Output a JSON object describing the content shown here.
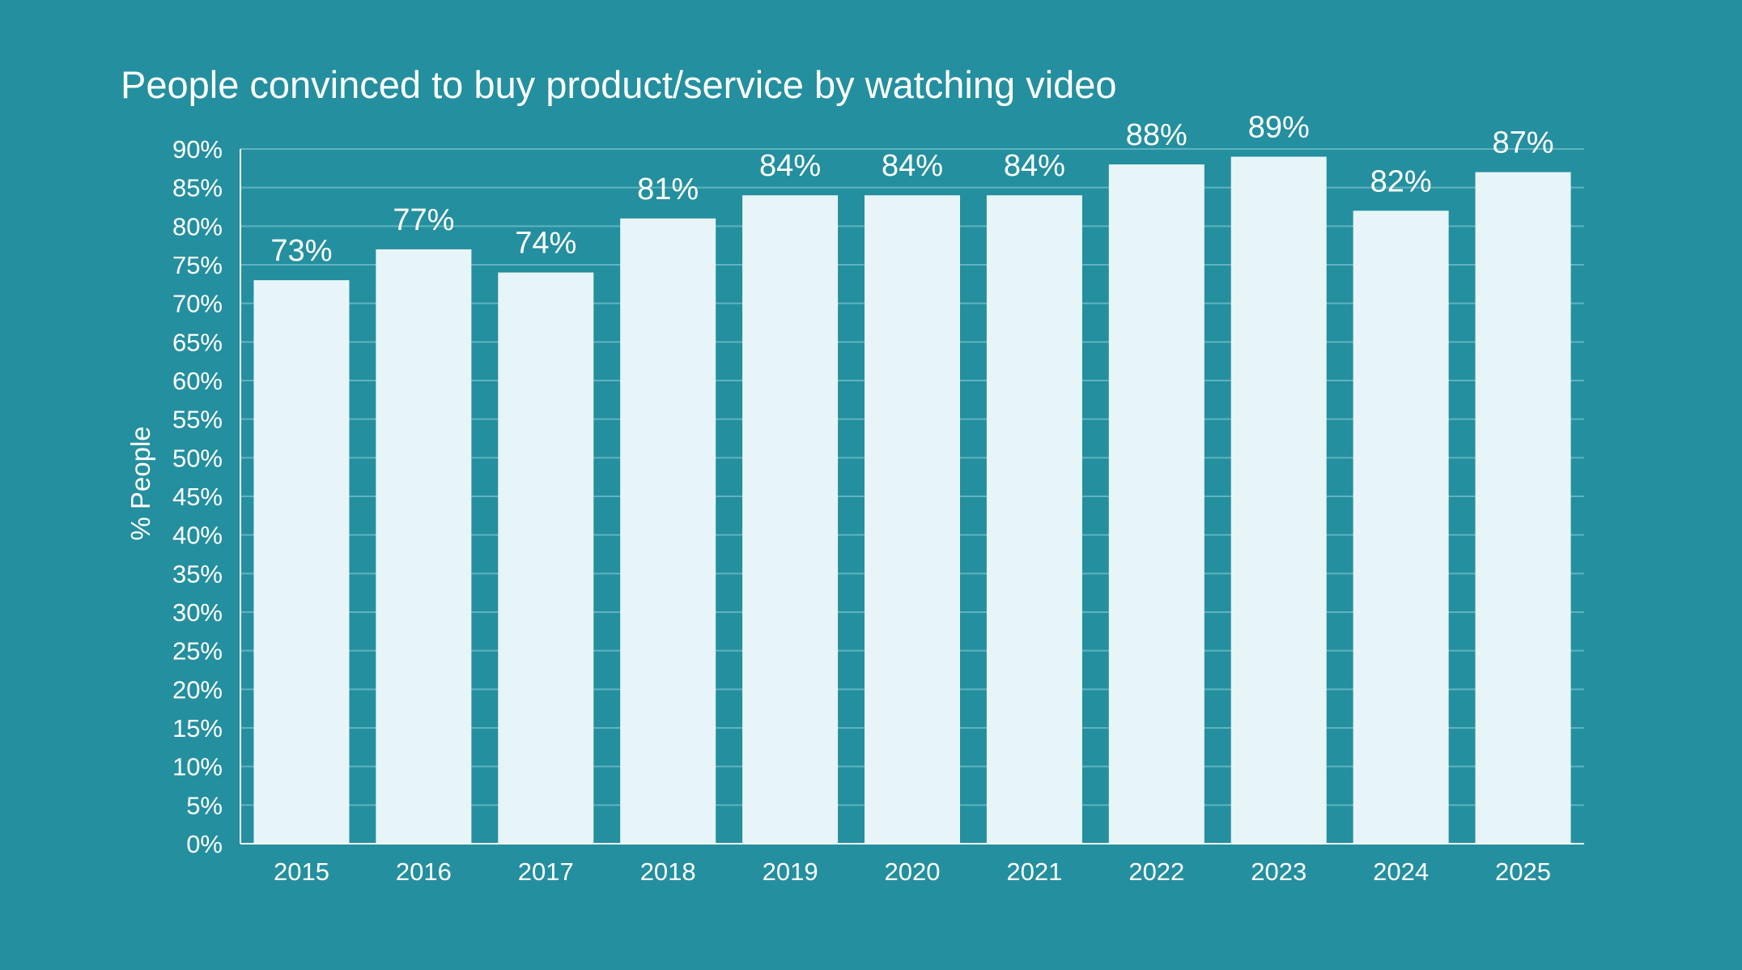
{
  "chart_data": {
    "type": "bar",
    "title": "People convinced to buy product/service by watching video",
    "xlabel": "",
    "ylabel": "% People",
    "categories": [
      "2015",
      "2016",
      "2017",
      "2018",
      "2019",
      "2020",
      "2021",
      "2022",
      "2023",
      "2024",
      "2025"
    ],
    "values": [
      73,
      77,
      74,
      81,
      84,
      84,
      84,
      88,
      89,
      82,
      87
    ],
    "value_labels": [
      "73%",
      "77%",
      "74%",
      "81%",
      "84%",
      "84%",
      "84%",
      "88%",
      "89%",
      "82%",
      "87%"
    ],
    "ylim": [
      0,
      90
    ],
    "yticks": [
      0,
      5,
      10,
      15,
      20,
      25,
      30,
      35,
      40,
      45,
      50,
      55,
      60,
      65,
      70,
      75,
      80,
      85,
      90
    ],
    "ytick_labels": [
      "0%",
      "5%",
      "10%",
      "15%",
      "20%",
      "25%",
      "30%",
      "35%",
      "40%",
      "45%",
      "50%",
      "55%",
      "60%",
      "65%",
      "70%",
      "75%",
      "80%",
      "85%",
      "90%"
    ],
    "grid": true,
    "legend": "none"
  },
  "colors": {
    "background": "#248f9f",
    "bar": "#e8f5f8",
    "grid": "#5fb3bf",
    "axis": "#ffffff",
    "text": "#ffffff"
  }
}
